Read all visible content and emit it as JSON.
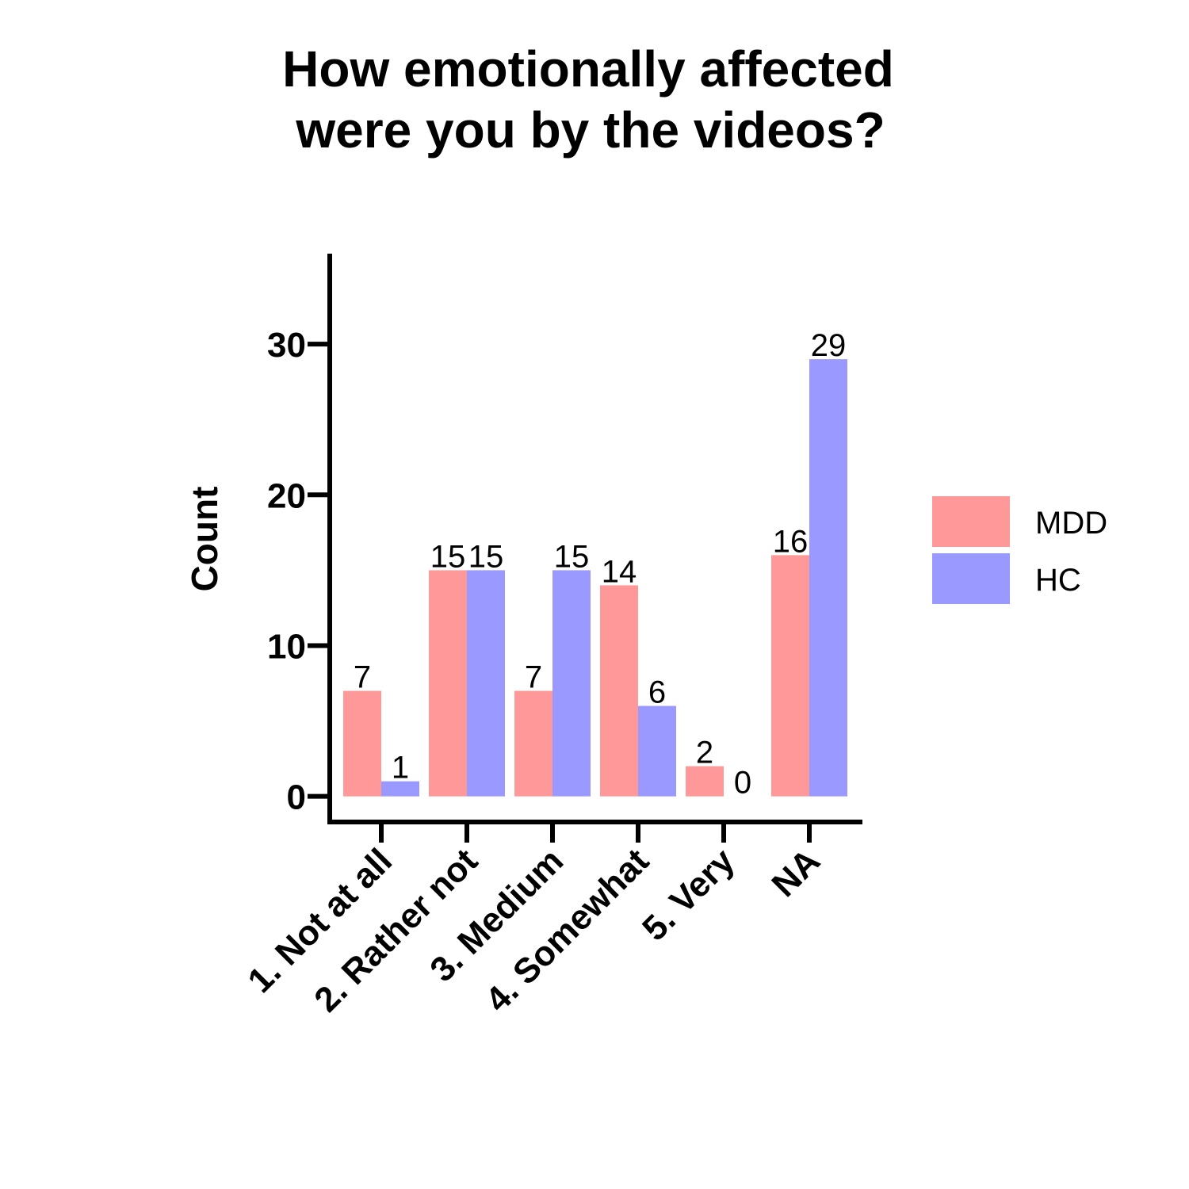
{
  "chart_data": {
    "type": "bar",
    "title": [
      "How emotionally affected",
      "were you by the videos?"
    ],
    "xlabel": "",
    "ylabel": "Count",
    "ylim": [
      -1.7,
      36
    ],
    "yticks": [
      0,
      10,
      20,
      30
    ],
    "grid": false,
    "legend_position": "right",
    "categories": [
      "1. Not at all",
      "2. Rather not",
      "3. Medium",
      "4. Somewhat",
      "5. Very",
      "NA"
    ],
    "series": [
      {
        "name": "MDD",
        "color": "#ff9999",
        "values": [
          7,
          15,
          7,
          14,
          2,
          16
        ]
      },
      {
        "name": "HC",
        "color": "#9999ff",
        "values": [
          1,
          15,
          15,
          6,
          0,
          29
        ]
      }
    ]
  }
}
